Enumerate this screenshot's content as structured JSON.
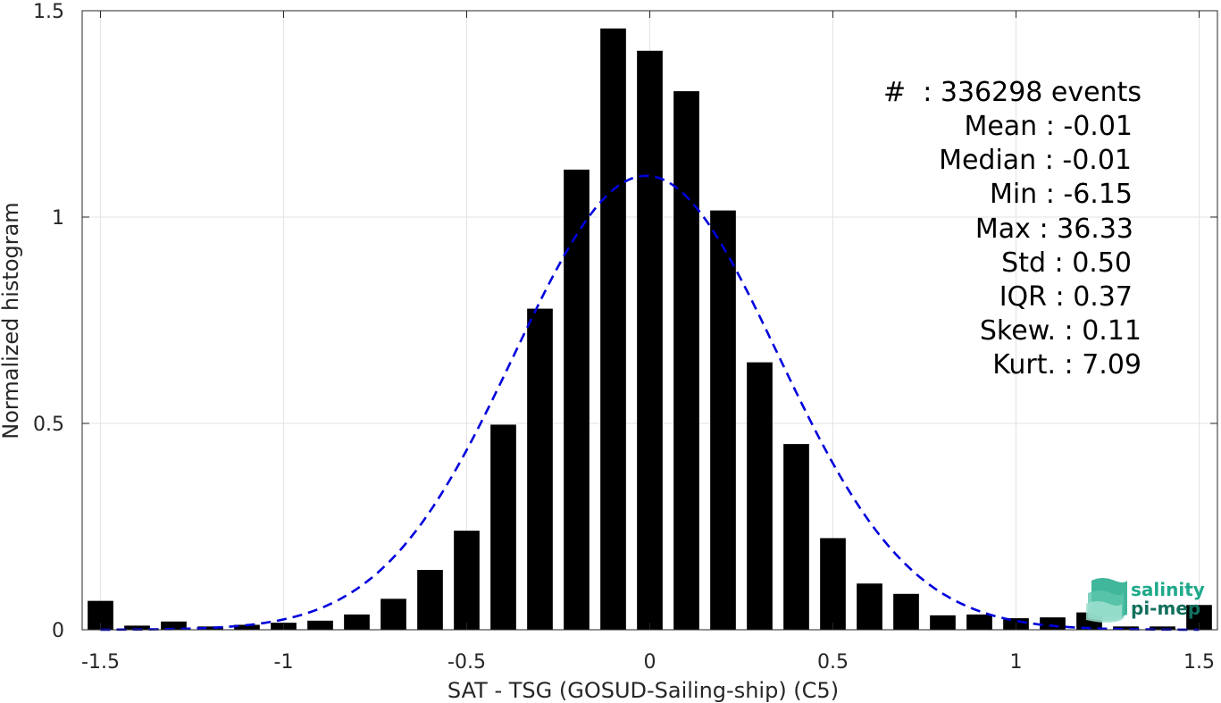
{
  "chart_data": {
    "type": "bar",
    "xlabel": "SAT - TSG (GOSUD-Sailing-ship) (C5)",
    "ylabel": "Normalized histogram",
    "xlim": [
      -1.55,
      1.55
    ],
    "ylim": [
      0,
      1.5
    ],
    "grid": true,
    "x_ticks": [
      -1.5,
      -1,
      -0.5,
      0,
      0.5,
      1,
      1.5
    ],
    "x_tick_labels": [
      "-1.5",
      "-1",
      "-0.5",
      "0",
      "0.5",
      "1",
      "1.5"
    ],
    "y_ticks": [
      0,
      0.5,
      1,
      1.5
    ],
    "y_tick_labels": [
      "0",
      "0.5",
      "1",
      "1.5"
    ],
    "bar_width": 0.07,
    "bar_color": "#000000",
    "x": [
      -1.5,
      -1.4,
      -1.3,
      -1.2,
      -1.1,
      -1.0,
      -0.9,
      -0.8,
      -0.7,
      -0.6,
      -0.5,
      -0.4,
      -0.3,
      -0.2,
      -0.1,
      0.0,
      0.1,
      0.2,
      0.3,
      0.4,
      0.5,
      0.6,
      0.7,
      0.8,
      0.9,
      1.0,
      1.1,
      1.2,
      1.3,
      1.4,
      1.5
    ],
    "values": [
      0.07,
      0.01,
      0.02,
      0.008,
      0.012,
      0.017,
      0.022,
      0.037,
      0.075,
      0.145,
      0.24,
      0.497,
      0.778,
      1.115,
      1.457,
      1.403,
      1.305,
      1.016,
      0.648,
      0.45,
      0.222,
      0.112,
      0.087,
      0.035,
      0.037,
      0.028,
      0.03,
      0.042,
      0.008,
      0.008,
      0.06
    ],
    "fit_curve": {
      "type": "gaussian",
      "mean": -0.01,
      "std": 0.36,
      "peak": 1.1,
      "color": "#0000dd",
      "dash": true
    }
  },
  "stats": [
    {
      "label": "#  : 336298 events"
    },
    {
      "label": "Mean : -0.01"
    },
    {
      "label": "Median : -0.01"
    },
    {
      "label": "Min : -6.15"
    },
    {
      "label": "Max : 36.33"
    },
    {
      "label": "Std : 0.50"
    },
    {
      "label": "IQR : 0.37"
    },
    {
      "label": "Skew. : 0.11"
    },
    {
      "label": "Kurt. : 7.09"
    }
  ],
  "logo": {
    "line1": "salinity",
    "line2": "pi-mep",
    "color1": "#1fa98a",
    "color2": "#13705e"
  }
}
